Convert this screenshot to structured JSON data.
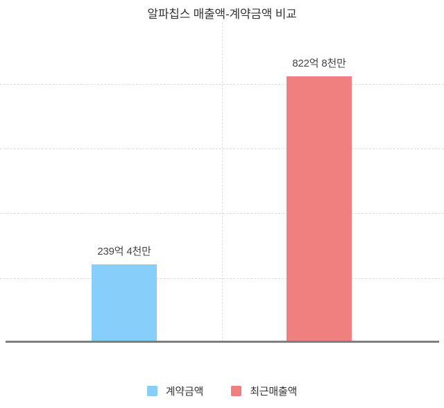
{
  "chart_data": {
    "type": "bar",
    "title": "알파칩스 매출액-계약금액 비교",
    "categories": [
      "계약금액",
      "최근매출액"
    ],
    "values": [
      239.4,
      822.8
    ],
    "value_labels": [
      "239억 4천만",
      "822억 8천만"
    ],
    "colors": [
      "#87CEFA",
      "#F08080"
    ],
    "xlabel": "",
    "ylabel": "",
    "ylim": [
      0,
      1000
    ],
    "gridline_interval": 200,
    "grid": "horizontal dashed lines, center vertical dashed divider, no tick labels",
    "legend_position": "bottom",
    "legend_entries": [
      "계약금액",
      "최근매출액"
    ]
  }
}
